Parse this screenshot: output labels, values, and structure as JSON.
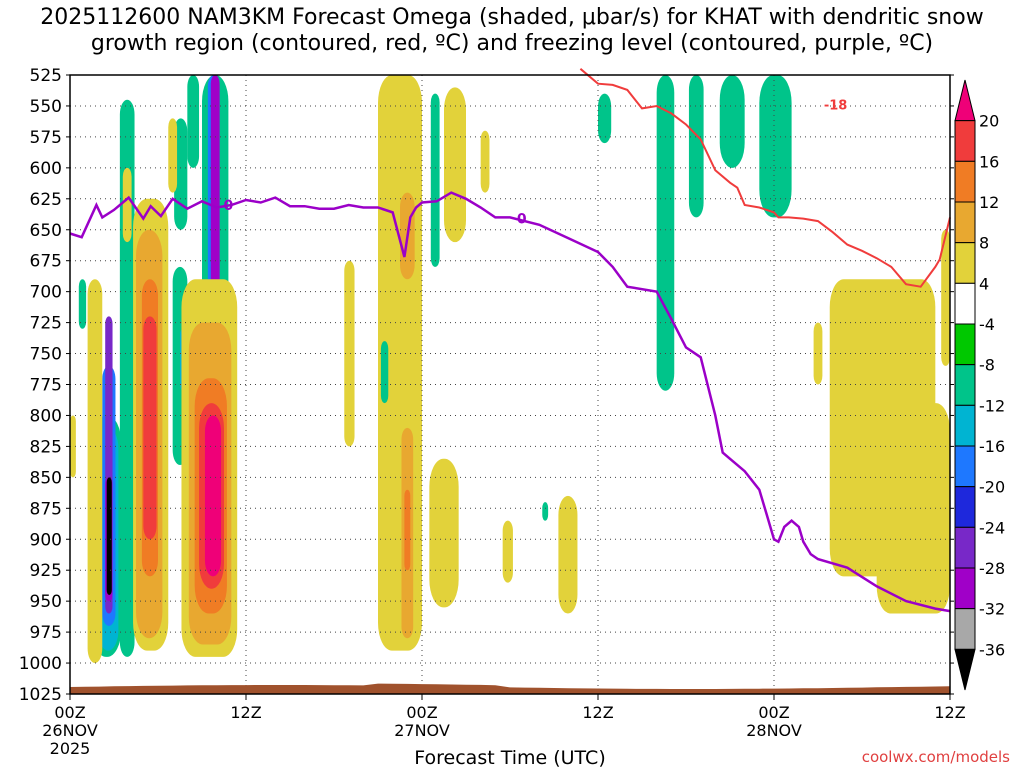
{
  "header": {
    "title_line1": "2025112600 NAM3KM Forecast Omega (shaded, μbar/s) for KHAT with dendritic snow",
    "title_line2": "growth region (contoured, red, ºC) and freezing level (contoured, purple, ºC)"
  },
  "watermark": "coolwx.com/models",
  "chart_data": {
    "type": "heatmap",
    "title": "2025112600 NAM3KM Forecast Omega (shaded, μbar/s) for KHAT with dendritic snow growth region (contoured, red, ºC) and freezing level (contoured, purple, ºC)",
    "xlabel": "Forecast Time (UTC)",
    "ylabel": "",
    "x_unit": "hours since 2025-11-26 00Z",
    "xlim": [
      0,
      60
    ],
    "x_ticks": [
      {
        "x": 0,
        "label": "00Z",
        "sub": "26NOV",
        "sub2": "2025"
      },
      {
        "x": 12,
        "label": "12Z",
        "sub": "",
        "sub2": ""
      },
      {
        "x": 24,
        "label": "00Z",
        "sub": "27NOV",
        "sub2": ""
      },
      {
        "x": 36,
        "label": "12Z",
        "sub": "",
        "sub2": ""
      },
      {
        "x": 48,
        "label": "00Z",
        "sub": "28NOV",
        "sub2": ""
      },
      {
        "x": 60,
        "label": "12Z",
        "sub": "",
        "sub2": ""
      }
    ],
    "y_unit": "hPa",
    "ylim": [
      1025,
      525
    ],
    "y_ticks": [
      525,
      550,
      575,
      600,
      625,
      650,
      675,
      700,
      725,
      750,
      775,
      800,
      825,
      850,
      875,
      900,
      925,
      950,
      975,
      1000,
      1025
    ],
    "grid": true,
    "colorbar": {
      "labels": [
        "20",
        "16",
        "12",
        "8",
        "4",
        "-4",
        "-8",
        "-12",
        "-16",
        "-20",
        "-24",
        "-28",
        "-32",
        "-36"
      ],
      "colors": [
        "#ef0078",
        "#f03c3c",
        "#f07c24",
        "#e8a830",
        "#e2d23a",
        "#ffffff",
        "#00c800",
        "#00c48a",
        "#00b4d2",
        "#1e78ff",
        "#1e28dc",
        "#7828c8",
        "#a000c8",
        "#a8a8a8",
        "#000000"
      ]
    },
    "freezing_level": {
      "name": "0",
      "color": "#9b00c8",
      "x": [
        0,
        0.8,
        1.8,
        2.2,
        3,
        4,
        5,
        5.5,
        6.2,
        7,
        8,
        9,
        10,
        11,
        12,
        13,
        14,
        15,
        16,
        17,
        18,
        19,
        20,
        21,
        22,
        22.8,
        23.2,
        23.6,
        24,
        25,
        26,
        27,
        28,
        29,
        30,
        32,
        34,
        36,
        37,
        38,
        40,
        41,
        42,
        43,
        44,
        44.5,
        45,
        46,
        47,
        47.5,
        48,
        48.3,
        48.7,
        49.2,
        49.7,
        50,
        50.5,
        51,
        53,
        55,
        57,
        59,
        60
      ],
      "y": [
        653,
        656,
        630,
        640,
        634,
        624,
        641,
        631,
        639,
        625,
        633,
        627,
        632,
        630,
        626,
        628,
        624,
        631,
        631,
        633,
        633,
        630,
        632,
        632,
        636,
        672,
        640,
        632,
        628,
        627,
        620,
        625,
        632,
        640,
        640,
        646,
        657,
        668,
        680,
        696,
        700,
        722,
        745,
        753,
        800,
        830,
        835,
        845,
        860,
        880,
        900,
        902,
        890,
        885,
        890,
        902,
        912,
        916,
        923,
        938,
        950,
        956,
        958
      ]
    },
    "dgz_contour": {
      "name": "-18",
      "color": "#f03c3c",
      "x": [
        34.8,
        36,
        37,
        38,
        39,
        40,
        41,
        42,
        43,
        44,
        45,
        45.5,
        46,
        47,
        47.5,
        48,
        48.3,
        49,
        50,
        51,
        52,
        53,
        54,
        55,
        56,
        57,
        58,
        59,
        59.3,
        60
      ],
      "y": [
        520,
        532,
        533,
        537,
        552,
        550,
        556,
        565,
        577,
        602,
        612,
        616,
        630,
        632,
        634,
        636,
        640,
        640,
        641,
        643,
        652,
        662,
        667,
        673,
        680,
        694,
        696,
        680,
        674,
        640
      ]
    },
    "omega_cells": [
      {
        "x": [
          3.4,
          4.4
        ],
        "y": [
          545,
          995
        ],
        "v": -8
      },
      {
        "x": [
          7.1,
          8.0
        ],
        "y": [
          560,
          650
        ],
        "v": -8
      },
      {
        "x": [
          8.0,
          8.8
        ],
        "y": [
          525,
          600
        ],
        "v": -8
      },
      {
        "x": [
          7.0,
          8.0
        ],
        "y": [
          680,
          840
        ],
        "v": -8
      },
      {
        "x": [
          0.6,
          1.1
        ],
        "y": [
          690,
          730
        ],
        "v": -8
      },
      {
        "x": [
          9.0,
          10.8
        ],
        "y": [
          525,
          775
        ],
        "v": -8
      },
      {
        "x": [
          1.5,
          3.5
        ],
        "y": [
          800,
          995
        ],
        "v": -8
      },
      {
        "x": [
          1.9,
          3.3
        ],
        "y": [
          810,
          990
        ],
        "v": -12
      },
      {
        "x": [
          2.2,
          3.1
        ],
        "y": [
          760,
          970
        ],
        "v": -16
      },
      {
        "x": [
          2.4,
          2.9
        ],
        "y": [
          720,
          960
        ],
        "v": -24
      },
      {
        "x": [
          2.4,
          2.9
        ],
        "y": [
          850,
          950
        ],
        "v": -28
      },
      {
        "x": [
          2.5,
          2.85
        ],
        "y": [
          850,
          945
        ],
        "v": -36
      },
      {
        "x": [
          7.5,
          7.9
        ],
        "y": [
          730,
          780
        ],
        "v": -12
      },
      {
        "x": [
          9.4,
          10.2
        ],
        "y": [
          525,
          700
        ],
        "v": -16
      },
      {
        "x": [
          9.6,
          10.2
        ],
        "y": [
          525,
          720
        ],
        "v": -28
      },
      {
        "x": [
          3.6,
          4.2
        ],
        "y": [
          600,
          660
        ],
        "v": 4
      },
      {
        "x": [
          1.2,
          2.2
        ],
        "y": [
          690,
          1000
        ],
        "v": 4
      },
      {
        "x": [
          4.3,
          6.7
        ],
        "y": [
          625,
          990
        ],
        "v": 4
      },
      {
        "x": [
          4.5,
          6.3
        ],
        "y": [
          650,
          980
        ],
        "v": 8
      },
      {
        "x": [
          4.9,
          6.0
        ],
        "y": [
          690,
          930
        ],
        "v": 12
      },
      {
        "x": [
          5.0,
          5.9
        ],
        "y": [
          720,
          900
        ],
        "v": 16
      },
      {
        "x": [
          6.7,
          7.3
        ],
        "y": [
          560,
          620
        ],
        "v": 4
      },
      {
        "x": [
          7.6,
          11.4
        ],
        "y": [
          690,
          995
        ],
        "v": 4
      },
      {
        "x": [
          8.1,
          11.0
        ],
        "y": [
          725,
          985
        ],
        "v": 8
      },
      {
        "x": [
          8.5,
          10.7
        ],
        "y": [
          770,
          960
        ],
        "v": 12
      },
      {
        "x": [
          8.8,
          10.5
        ],
        "y": [
          790,
          940
        ],
        "v": 16
      },
      {
        "x": [
          9.2,
          10.3
        ],
        "y": [
          800,
          930
        ],
        "v": 20
      },
      {
        "x": [
          0,
          0.4
        ],
        "y": [
          800,
          850
        ],
        "v": 4
      },
      {
        "x": [
          18.7,
          19.4
        ],
        "y": [
          675,
          825
        ],
        "v": 4
      },
      {
        "x": [
          21.0,
          24.0
        ],
        "y": [
          525,
          990
        ],
        "v": 4
      },
      {
        "x": [
          22.5,
          23.5
        ],
        "y": [
          620,
          690
        ],
        "v": 8
      },
      {
        "x": [
          22.6,
          23.4
        ],
        "y": [
          810,
          980
        ],
        "v": 8
      },
      {
        "x": [
          22.8,
          23.2
        ],
        "y": [
          860,
          925
        ],
        "v": 12
      },
      {
        "x": [
          21.2,
          21.7
        ],
        "y": [
          740,
          790
        ],
        "v": -8
      },
      {
        "x": [
          24.6,
          25.2
        ],
        "y": [
          540,
          680
        ],
        "v": -8
      },
      {
        "x": [
          25.5,
          27.0
        ],
        "y": [
          535,
          660
        ],
        "v": 4
      },
      {
        "x": [
          24.5,
          26.5
        ],
        "y": [
          835,
          955
        ],
        "v": 4
      },
      {
        "x": [
          28.0,
          28.6
        ],
        "y": [
          570,
          620
        ],
        "v": 4
      },
      {
        "x": [
          29.5,
          30.2
        ],
        "y": [
          885,
          935
        ],
        "v": 4
      },
      {
        "x": [
          32.2,
          32.6
        ],
        "y": [
          870,
          885
        ],
        "v": -8
      },
      {
        "x": [
          33.3,
          34.6
        ],
        "y": [
          865,
          960
        ],
        "v": 4
      },
      {
        "x": [
          36.0,
          36.9
        ],
        "y": [
          540,
          580
        ],
        "v": -8
      },
      {
        "x": [
          40.0,
          41.2
        ],
        "y": [
          520,
          780
        ],
        "v": -8
      },
      {
        "x": [
          42.2,
          43.2
        ],
        "y": [
          520,
          640
        ],
        "v": -8
      },
      {
        "x": [
          44.3,
          46.0
        ],
        "y": [
          525,
          600
        ],
        "v": -8
      },
      {
        "x": [
          47.0,
          49.2
        ],
        "y": [
          520,
          640
        ],
        "v": -8
      },
      {
        "x": [
          50.7,
          51.3
        ],
        "y": [
          725,
          775
        ],
        "v": 4
      },
      {
        "x": [
          51.8,
          59.0
        ],
        "y": [
          690,
          930
        ],
        "v": 4
      },
      {
        "x": [
          55.0,
          60.0
        ],
        "y": [
          790,
          960
        ],
        "v": 4
      },
      {
        "x": [
          59.4,
          60.0
        ],
        "y": [
          650,
          760
        ],
        "v": 4
      }
    ]
  }
}
